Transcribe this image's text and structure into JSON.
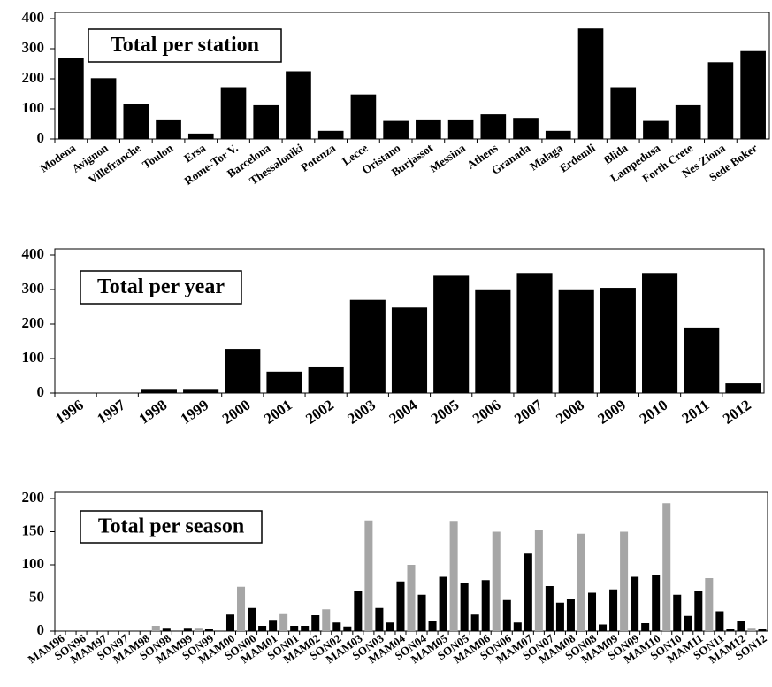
{
  "chart_data": [
    {
      "type": "bar",
      "title": "Total per station",
      "categories": [
        "Modena",
        "Avignon",
        "Villefranche",
        "Toulon",
        "Ersa",
        "Rome-Tor V.",
        "Barcelona",
        "Thessaloniki",
        "Potenza",
        "Lecce",
        "Oristano",
        "Burjassot",
        "Messina",
        "Athens",
        "Granada",
        "Malaga",
        "Erdemli",
        "Blida",
        "Lampedusa",
        "Forth Crete",
        "Nes Ziona",
        "Sede Boker"
      ],
      "values": [
        270,
        202,
        115,
        65,
        18,
        172,
        112,
        225,
        27,
        148,
        60,
        65,
        65,
        82,
        70,
        27,
        367,
        172,
        60,
        112,
        255,
        292
      ],
      "color": "#000000",
      "ylim": [
        0,
        400
      ],
      "yticks": [
        0,
        100,
        200,
        300,
        400
      ]
    },
    {
      "type": "bar",
      "title": "Total per year",
      "categories": [
        "1996",
        "1997",
        "1998",
        "1999",
        "2000",
        "2001",
        "2002",
        "2003",
        "2004",
        "2005",
        "2006",
        "2007",
        "2008",
        "2009",
        "2010",
        "2011",
        "2012"
      ],
      "values": [
        1,
        1,
        12,
        12,
        128,
        62,
        77,
        270,
        248,
        340,
        298,
        348,
        298,
        305,
        348,
        190,
        28
      ],
      "color": "#000000",
      "ylim": [
        0,
        400
      ],
      "yticks": [
        0,
        100,
        200,
        300,
        400
      ]
    },
    {
      "type": "bar",
      "title": "Total per season",
      "categories": [
        "MAM96",
        null,
        "SON96",
        null,
        "MAM97",
        null,
        "SON97",
        null,
        "MAM98",
        null,
        "SON98",
        null,
        "MAM99",
        null,
        "SON99",
        null,
        "MAM00",
        null,
        "SON00",
        null,
        "MAM01",
        null,
        "SON01",
        null,
        "MAM02",
        null,
        "SON02",
        null,
        "MAM03",
        null,
        "SON03",
        null,
        "MAM04",
        null,
        "SON04",
        null,
        "MAM05",
        null,
        "SON05",
        null,
        "MAM06",
        null,
        "SON06",
        null,
        "MAM07",
        null,
        "SON07",
        null,
        "MAM08",
        null,
        "SON08",
        null,
        "MAM09",
        null,
        "SON09",
        null,
        "MAM10",
        null,
        "SON10",
        null,
        "MAM11",
        null,
        "SON11",
        null,
        "MAM12",
        null,
        "SON12"
      ],
      "values": [
        0,
        0,
        0,
        0,
        0,
        0,
        0,
        0,
        0,
        8,
        5,
        0,
        5,
        5,
        3,
        0,
        25,
        67,
        35,
        8,
        17,
        27,
        8,
        8,
        24,
        33,
        13,
        7,
        60,
        167,
        35,
        13,
        75,
        100,
        55,
        15,
        82,
        165,
        72,
        25,
        77,
        150,
        47,
        13,
        117,
        152,
        68,
        43,
        48,
        147,
        58,
        10,
        63,
        150,
        82,
        12,
        85,
        193,
        55,
        23,
        60,
        80,
        30,
        3,
        16,
        5,
        3
      ],
      "colors": [
        "#000000",
        "#a6a6a6",
        "#000000",
        "#000000",
        "#000000",
        "#a6a6a6",
        "#000000",
        "#000000",
        "#000000",
        "#a6a6a6",
        "#000000",
        "#000000",
        "#000000",
        "#a6a6a6",
        "#000000",
        "#000000",
        "#000000",
        "#a6a6a6",
        "#000000",
        "#000000",
        "#000000",
        "#a6a6a6",
        "#000000",
        "#000000",
        "#000000",
        "#a6a6a6",
        "#000000",
        "#000000",
        "#000000",
        "#a6a6a6",
        "#000000",
        "#000000",
        "#000000",
        "#a6a6a6",
        "#000000",
        "#000000",
        "#000000",
        "#a6a6a6",
        "#000000",
        "#000000",
        "#000000",
        "#a6a6a6",
        "#000000",
        "#000000",
        "#000000",
        "#a6a6a6",
        "#000000",
        "#000000",
        "#000000",
        "#a6a6a6",
        "#000000",
        "#000000",
        "#000000",
        "#a6a6a6",
        "#000000",
        "#000000",
        "#000000",
        "#a6a6a6",
        "#000000",
        "#000000",
        "#000000",
        "#a6a6a6",
        "#000000",
        "#000000",
        "#000000",
        "#a6a6a6",
        "#000000"
      ],
      "ylim": [
        0,
        200
      ],
      "yticks": [
        0,
        50,
        100,
        150,
        200
      ]
    }
  ]
}
